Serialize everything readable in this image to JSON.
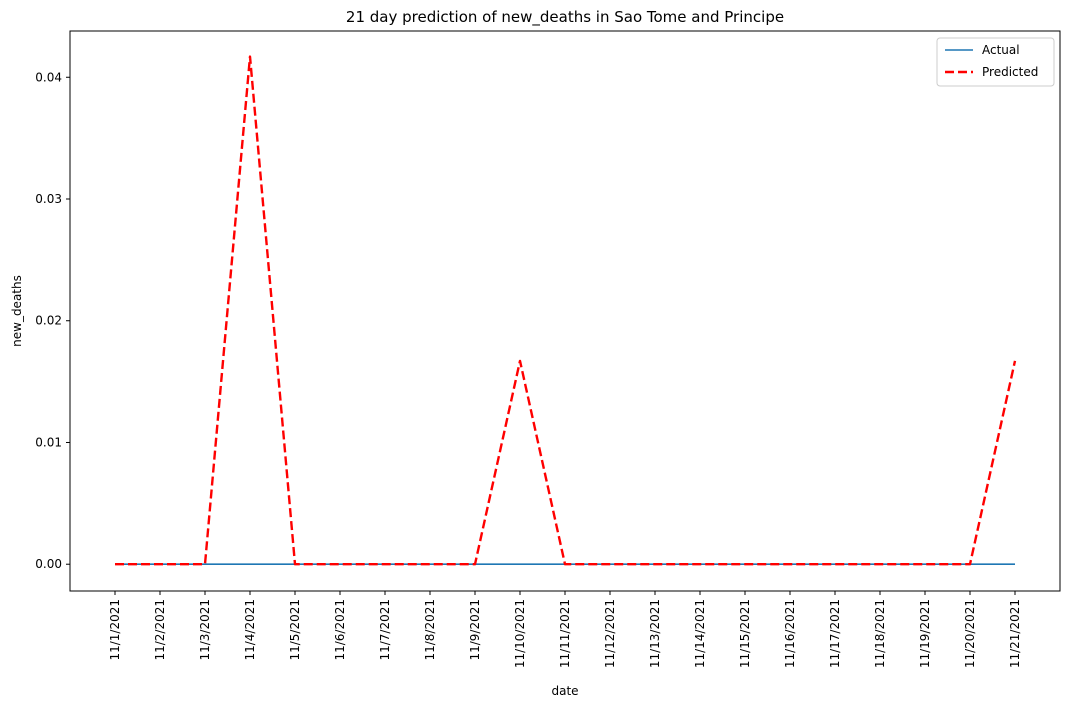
{
  "chart_data": {
    "type": "line",
    "title": "21 day prediction of new_deaths in Sao Tome and Principe",
    "xlabel": "date",
    "ylabel": "new_deaths",
    "x": [
      "11/1/2021",
      "11/2/2021",
      "11/3/2021",
      "11/4/2021",
      "11/5/2021",
      "11/6/2021",
      "11/7/2021",
      "11/8/2021",
      "11/9/2021",
      "11/10/2021",
      "11/11/2021",
      "11/12/2021",
      "11/13/2021",
      "11/14/2021",
      "11/15/2021",
      "11/16/2021",
      "11/17/2021",
      "11/18/2021",
      "11/19/2021",
      "11/20/2021",
      "11/21/2021"
    ],
    "ylim": [
      -0.0022,
      0.0438
    ],
    "yticks": [
      0.0,
      0.01,
      0.02,
      0.03,
      0.04
    ],
    "ytick_labels": [
      "0.00",
      "0.01",
      "0.02",
      "0.03",
      "0.04"
    ],
    "grid": false,
    "legend": "top-right",
    "series": [
      {
        "name": "Actual",
        "style": "solid",
        "color": "#1f77b4",
        "values": [
          0,
          0,
          0,
          0,
          0,
          0,
          0,
          0,
          0,
          0,
          0,
          0,
          0,
          0,
          0,
          0,
          0,
          0,
          0,
          0,
          0
        ]
      },
      {
        "name": "Predicted",
        "style": "dashed",
        "color": "#ff0000",
        "values": [
          0,
          0,
          0,
          0.0417,
          0,
          0,
          0,
          0,
          0,
          0.0167,
          0,
          0,
          0,
          0,
          0,
          0,
          0,
          0,
          0,
          0,
          0.0167
        ]
      }
    ]
  }
}
